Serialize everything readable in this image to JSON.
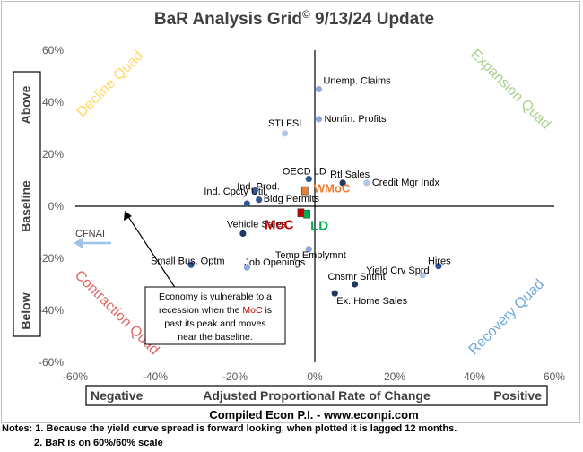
{
  "chart_data": {
    "type": "scatter",
    "title": "BaR Analysis Grid",
    "title_mark": "©",
    "title_suffix": " 9/13/24 Update",
    "xlabel": "Adjusted Proportional Rate of Change",
    "xlabel_left": "Negative",
    "xlabel_right": "Positive",
    "ylabel_top": "Above",
    "ylabel_mid": "Baseline",
    "ylabel_bottom": "Below",
    "xlim": [
      -60,
      60
    ],
    "ylim": [
      -60,
      60
    ],
    "xticks": [
      "-60%",
      "-40%",
      "-20%",
      "0%",
      "20%",
      "40%",
      "60%"
    ],
    "yticks": [
      "60%",
      "40%",
      "20%",
      "0%",
      "-20%",
      "-40%",
      "-60%"
    ],
    "grid": false,
    "quadrants": [
      {
        "label": "Decline Quad",
        "position": "top-left",
        "color": "#ffd966"
      },
      {
        "label": "Expansion Quad",
        "position": "top-right",
        "color": "#a9d18e"
      },
      {
        "label": "Contraction Quad",
        "position": "bottom-left",
        "color": "#e06666"
      },
      {
        "label": "Recovery Quad",
        "position": "bottom-right",
        "color": "#6fa8dc"
      }
    ],
    "points": [
      {
        "label": "Unemp. Claims",
        "x": 1,
        "y": 45,
        "color": "#8eaadb"
      },
      {
        "label": "Nonfin. Profits",
        "x": 1,
        "y": 33.5,
        "color": "#8eaadb"
      },
      {
        "label": "STLFSI",
        "x": -7.5,
        "y": 28,
        "color": "#b4c7e7"
      },
      {
        "label": "OECD LD",
        "x": -1.5,
        "y": 10.5,
        "color": "#2f5597"
      },
      {
        "label": "Rtl Sales",
        "x": 7,
        "y": 9,
        "color": "#1f3864"
      },
      {
        "label": "Credit Mgr Indx",
        "x": 13,
        "y": 9,
        "color": "#b4c7e7"
      },
      {
        "label": "Ind. Prod.",
        "x": -15,
        "y": 6,
        "color": "#2f5597"
      },
      {
        "label": "Bldg Permits",
        "x": -14,
        "y": 2.5,
        "color": "#2f5597"
      },
      {
        "label": "Ind. Cpcty Util.",
        "x": -17,
        "y": 1,
        "color": "#2f5597"
      },
      {
        "label": "Vehicle Sales",
        "x": -18,
        "y": -10.5,
        "color": "#1f3864"
      },
      {
        "label": "Temp Emplymnt",
        "x": -1.5,
        "y": -16.5,
        "color": "#8eaadb"
      },
      {
        "label": "Small Bus. Optm",
        "x": -31,
        "y": -22.5,
        "color": "#2f5597"
      },
      {
        "label": "Job Openings",
        "x": -17,
        "y": -23.5,
        "color": "#8eaadb"
      },
      {
        "label": "Hires",
        "x": 31,
        "y": -23,
        "color": "#2f5597"
      },
      {
        "label": "Yield Crv Sprd",
        "x": 27,
        "y": -26.5,
        "color": "#b4c7e7"
      },
      {
        "label": "Cnsmr Sntmt",
        "x": 10,
        "y": -30,
        "color": "#1f3864"
      },
      {
        "label": "Ex. Home Sales",
        "x": 5,
        "y": -33.5,
        "color": "#1f3864"
      }
    ],
    "markers": [
      {
        "label": "WMoC",
        "x": -2.5,
        "y": 6,
        "color": "#ed7d31"
      },
      {
        "label": "MoC",
        "x": -3.5,
        "y": -2.5,
        "color": "#c00000"
      },
      {
        "label": "LD",
        "x": -2,
        "y": -3,
        "color": "#00b050"
      }
    ],
    "cfnai_label": "CFNAI",
    "annotation_lines": [
      {
        "segments": [
          {
            "text": "Economy is vulnerable to a",
            "color": "#000000"
          }
        ]
      },
      {
        "segments": [
          {
            "text": "recession when the ",
            "color": "#000000"
          },
          {
            "text": "MoC",
            "color": "#c00000"
          },
          {
            "text": " is",
            "color": "#000000"
          }
        ]
      },
      {
        "segments": [
          {
            "text": "past its peak and moves",
            "color": "#000000"
          }
        ]
      },
      {
        "segments": [
          {
            "text": "near the baseline.",
            "color": "#000000"
          }
        ]
      }
    ],
    "source": "Compiled Econ P.I. - www.econpi.com"
  },
  "notes": [
    "Notes: 1. Because the yield curve spread is forward looking, when plotted it is lagged 12 months.",
    "2. BaR is on 60%/60% scale"
  ]
}
